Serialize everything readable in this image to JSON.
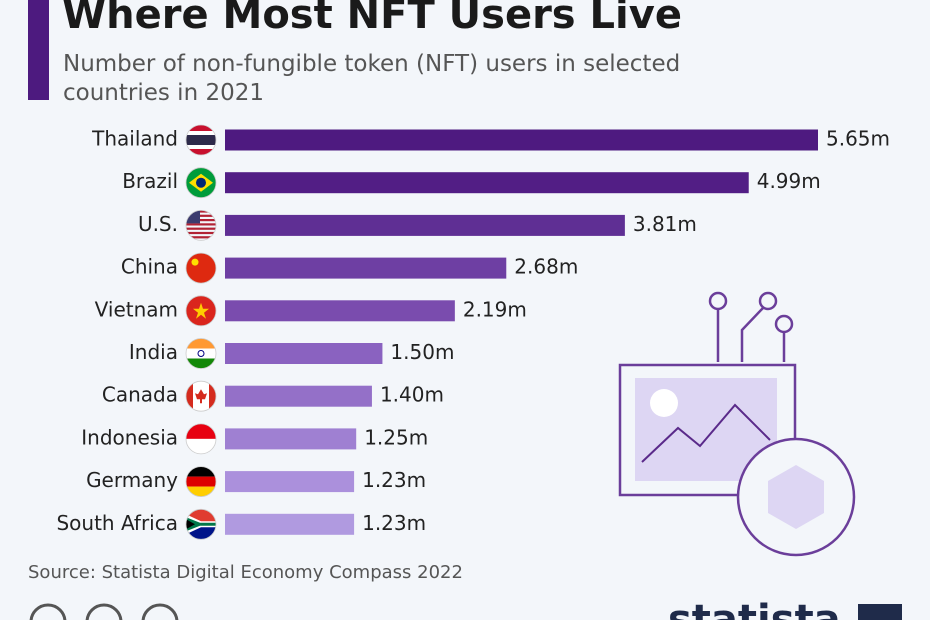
{
  "chart_data": {
    "type": "bar",
    "orientation": "horizontal",
    "title": "Where Most NFT Users Live",
    "subtitle": "Number of non-fungible token (NFT) users in selected countries in 2021",
    "categories": [
      "Thailand",
      "Brazil",
      "U.S.",
      "China",
      "Vietnam",
      "India",
      "Canada",
      "Indonesia",
      "Germany",
      "South Africa"
    ],
    "values": [
      5.65,
      4.99,
      3.81,
      2.68,
      2.19,
      1.5,
      1.4,
      1.25,
      1.23,
      1.23
    ],
    "value_labels": [
      "5.65m",
      "4.99m",
      "3.81m",
      "2.68m",
      "2.19m",
      "1.50m",
      "1.40m",
      "1.25m",
      "1.23m",
      "1.23m"
    ],
    "colors": [
      "#4e1a80",
      "#521e85",
      "#5f2f94",
      "#6e3fa3",
      "#7a4cae",
      "#8a62c0",
      "#9470c8",
      "#9f80d2",
      "#ab90dc",
      "#b09ae0"
    ],
    "source": "Source: Statista Digital Economy Compass 2022",
    "logo": "statista"
  }
}
